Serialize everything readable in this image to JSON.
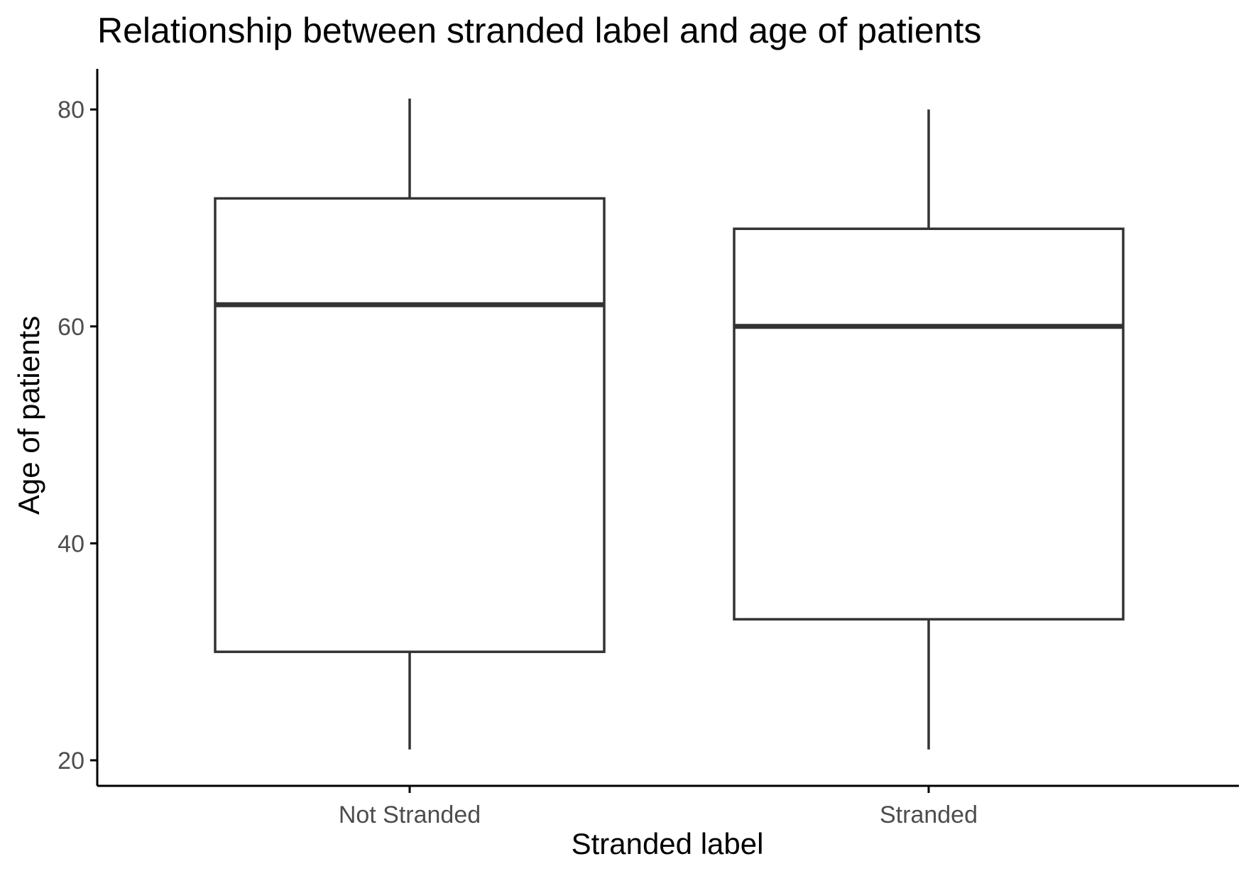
{
  "chart_data": {
    "type": "boxplot",
    "title": "Relationship between stranded label and age of patients",
    "xlabel": "Stranded label",
    "ylabel": "Age of patients",
    "categories": [
      "Not Stranded",
      "Stranded"
    ],
    "boxes": [
      {
        "category": "Not Stranded",
        "whisker_low": 21,
        "q1": 30,
        "median": 62,
        "q3": 71.8,
        "whisker_high": 81
      },
      {
        "category": "Stranded",
        "whisker_low": 21,
        "q1": 33,
        "median": 60,
        "q3": 69,
        "whisker_high": 80
      }
    ],
    "yticks": [
      20,
      40,
      60,
      80
    ],
    "ylim": [
      18,
      84
    ],
    "grid": false,
    "legend": "none",
    "colors": {
      "box_stroke": "#333333",
      "box_fill": "#ffffff",
      "axis": "#000000",
      "tick_label": "#4d4d4d"
    }
  }
}
